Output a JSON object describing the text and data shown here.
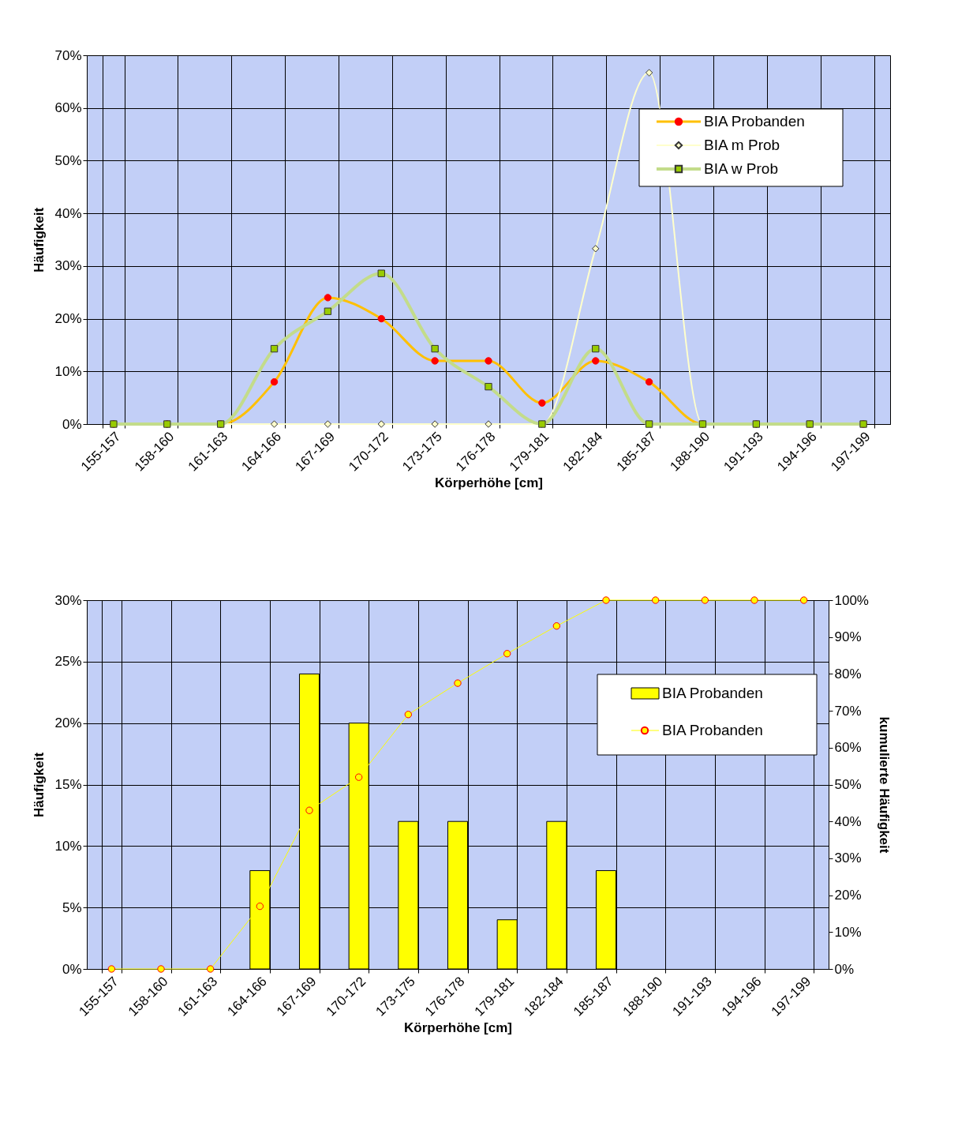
{
  "chart_data": [
    {
      "type": "line",
      "xlabel": "Körperhöhe [cm]",
      "ylabel": "Häufigkeit",
      "categories": [
        "155-157",
        "158-160",
        "161-163",
        "164-166",
        "167-169",
        "170-172",
        "173-175",
        "176-178",
        "179-181",
        "182-184",
        "185-187",
        "188-190",
        "191-193",
        "194-196",
        "197-199"
      ],
      "ylim": [
        0,
        70
      ],
      "yticks": [
        {
          "value": 0,
          "label": "0%"
        },
        {
          "value": 10,
          "label": "10%"
        },
        {
          "value": 20,
          "label": "20%"
        },
        {
          "value": 30,
          "label": "30%"
        },
        {
          "value": 40,
          "label": "40%"
        },
        {
          "value": 50,
          "label": "50%"
        },
        {
          "value": 60,
          "label": "60%"
        },
        {
          "value": 70,
          "label": "70%"
        }
      ],
      "grid": true,
      "legend": "top right",
      "series": [
        {
          "name": "BIA Probanden",
          "color": "#ffc000",
          "marker": "circle",
          "values": [
            0,
            0,
            0,
            8,
            24,
            20,
            12,
            12,
            4,
            12,
            8,
            0,
            0,
            0,
            0
          ]
        },
        {
          "name": "BIA m Prob",
          "color": "#ffffcc",
          "marker": "diamond",
          "values": [
            0,
            0,
            0,
            0,
            0,
            0,
            0,
            0,
            0,
            33.3,
            66.7,
            0,
            0,
            null,
            null
          ]
        },
        {
          "name": "BIA w Prob",
          "color": "#c3dc8a",
          "marker": "square",
          "values": [
            0,
            0,
            0,
            14.3,
            21.4,
            28.6,
            14.3,
            7.1,
            0,
            14.3,
            0,
            0,
            0,
            0,
            0
          ]
        }
      ]
    },
    {
      "type": "bar",
      "xlabel": "Körperhöhe [cm]",
      "ylabel": "Häufigkeit",
      "y2label": "kumulierte Häufigkeit",
      "categories": [
        "155-157",
        "158-160",
        "161-163",
        "164-166",
        "167-169",
        "170-172",
        "173-175",
        "176-178",
        "179-181",
        "182-184",
        "185-187",
        "188-190",
        "191-193",
        "194-196",
        "197-199"
      ],
      "ylim": [
        0,
        30
      ],
      "yticks": [
        {
          "value": 0,
          "label": "0%"
        },
        {
          "value": 5,
          "label": "5%"
        },
        {
          "value": 10,
          "label": "10%"
        },
        {
          "value": 15,
          "label": "15%"
        },
        {
          "value": 20,
          "label": "20%"
        },
        {
          "value": 25,
          "label": "25%"
        },
        {
          "value": 30,
          "label": "30%"
        }
      ],
      "y2lim": [
        0,
        100
      ],
      "y2ticks": [
        {
          "value": 0,
          "label": "0%"
        },
        {
          "value": 10,
          "label": "10%"
        },
        {
          "value": 20,
          "label": "20%"
        },
        {
          "value": 30,
          "label": "30%"
        },
        {
          "value": 40,
          "label": "40%"
        },
        {
          "value": 50,
          "label": "50%"
        },
        {
          "value": 60,
          "label": "60%"
        },
        {
          "value": 70,
          "label": "70%"
        },
        {
          "value": 80,
          "label": "80%"
        },
        {
          "value": 90,
          "label": "90%"
        },
        {
          "value": 100,
          "label": "100%"
        }
      ],
      "grid": true,
      "legend": "right",
      "series": [
        {
          "name": "BIA Probanden",
          "type": "bar",
          "color": "#ffff00",
          "values": [
            0,
            0,
            0,
            8,
            24,
            20,
            12,
            12,
            4,
            12,
            8,
            0,
            0,
            0,
            0
          ]
        },
        {
          "name": "BIA Probanden",
          "type": "line",
          "axis": "y2",
          "color": "#ffff00",
          "marker": "circle",
          "values": [
            0,
            0,
            0,
            17,
            43,
            52,
            69,
            77.5,
            85.5,
            93,
            100,
            100,
            100,
            100,
            100
          ]
        }
      ]
    }
  ]
}
